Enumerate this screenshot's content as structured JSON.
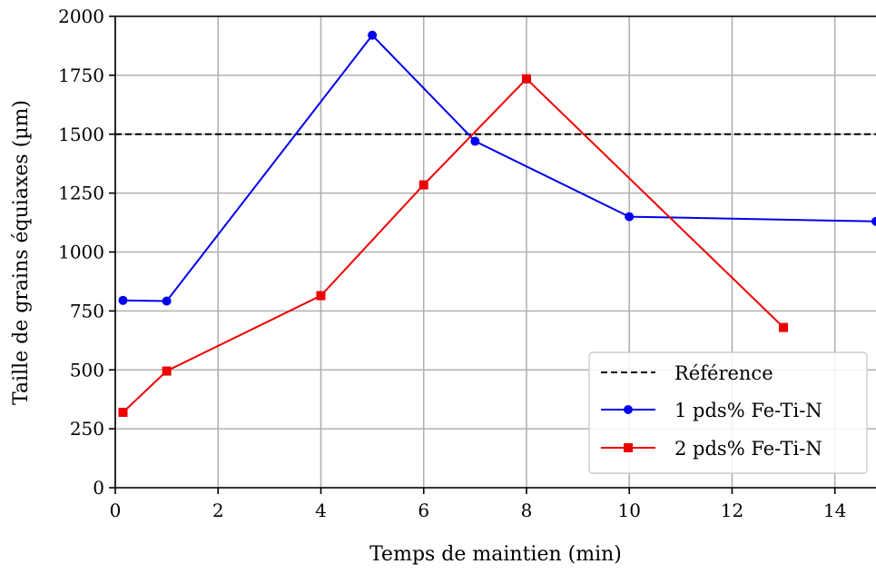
{
  "chart_data": {
    "type": "line",
    "xlabel": "Temps de maintien (min)",
    "ylabel": "Taille de grains équiaxes (µm)",
    "xlim": [
      0,
      14.8
    ],
    "ylim": [
      0,
      2000
    ],
    "xticks": [
      0,
      2,
      4,
      6,
      8,
      10,
      12,
      14
    ],
    "yticks": [
      0,
      250,
      500,
      750,
      1000,
      1250,
      1500,
      1750,
      2000
    ],
    "grid": true,
    "legend_position": "bottom-right",
    "reference": {
      "name": "Référence",
      "y": 1500,
      "color": "#000000",
      "style": "dashed"
    },
    "series": [
      {
        "name": "1 pds% Fe-Ti-N",
        "color": "#0000ee",
        "marker": "circle",
        "x": [
          0.15,
          1,
          5,
          7,
          10,
          14.8
        ],
        "y": [
          795,
          792,
          1920,
          1470,
          1150,
          1130
        ]
      },
      {
        "name": "2 pds% Fe-Ti-N",
        "color": "#ee0000",
        "marker": "square",
        "x": [
          0.15,
          1,
          4,
          6,
          8,
          13
        ],
        "y": [
          320,
          495,
          815,
          1285,
          1735,
          680
        ]
      }
    ]
  }
}
